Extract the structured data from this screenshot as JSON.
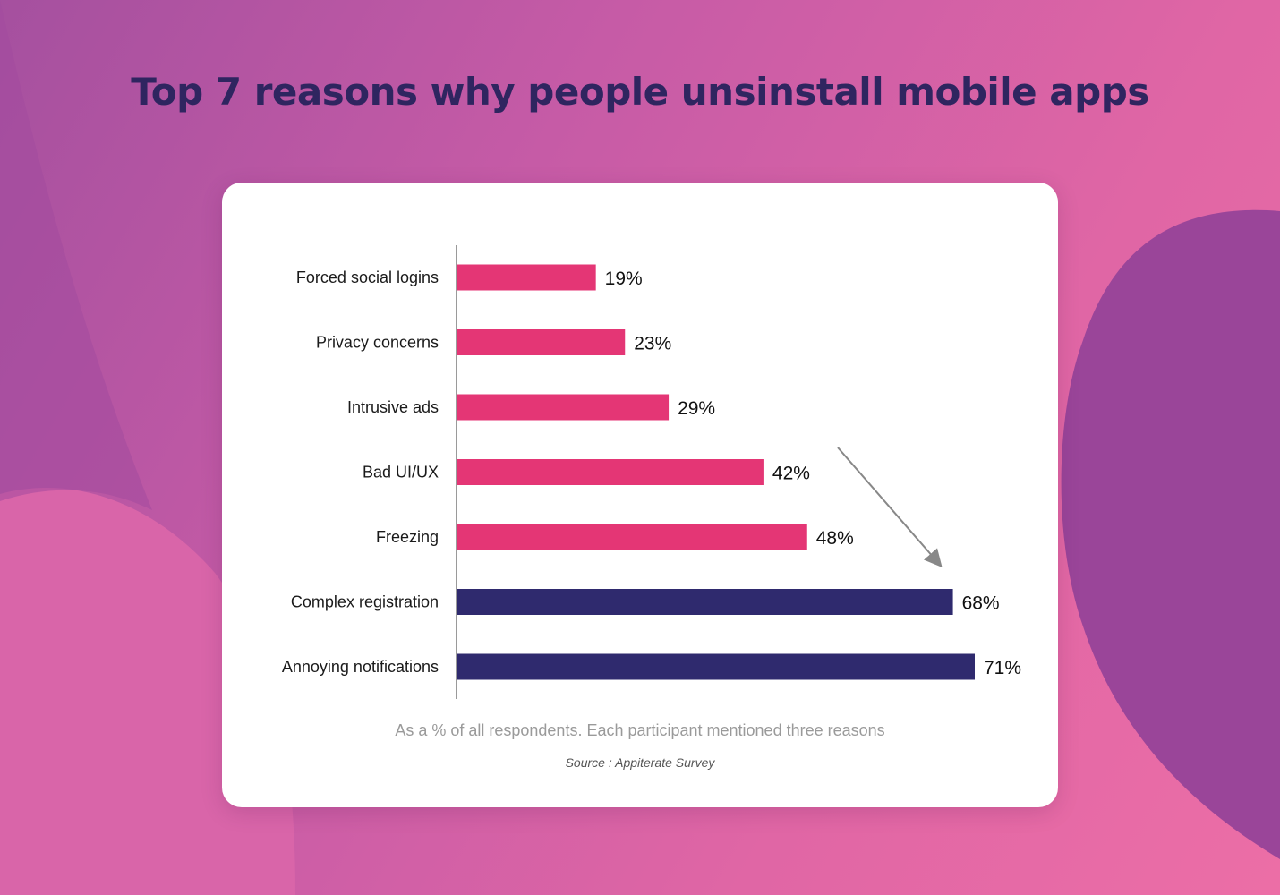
{
  "title": "Top 7 reasons why people unsinstall mobile apps",
  "footnote": "As a % of all respondents. Each participant mentioned three reasons",
  "source": "Source : Appiterate Survey",
  "colors": {
    "highlight": "#e43675",
    "emphasis": "#2f2a6e",
    "title": "#2f2560"
  },
  "chart_data": {
    "type": "bar",
    "orientation": "horizontal",
    "categories": [
      "Forced social logins",
      "Privacy concerns",
      "Intrusive ads",
      "Bad UI/UX",
      "Freezing",
      "Complex registration",
      "Annoying notifications"
    ],
    "values": [
      19,
      23,
      29,
      42,
      48,
      68,
      71
    ],
    "value_labels": [
      "19%",
      "23%",
      "29%",
      "42%",
      "48%",
      "68%",
      "71%"
    ],
    "bar_colors": [
      "#e43675",
      "#e43675",
      "#e43675",
      "#e43675",
      "#e43675",
      "#2f2a6e",
      "#2f2a6e"
    ],
    "xlim": [
      0,
      71
    ],
    "grid": false,
    "annotation": "downward arrow pointing from the pink bars toward the top two dark bars"
  }
}
